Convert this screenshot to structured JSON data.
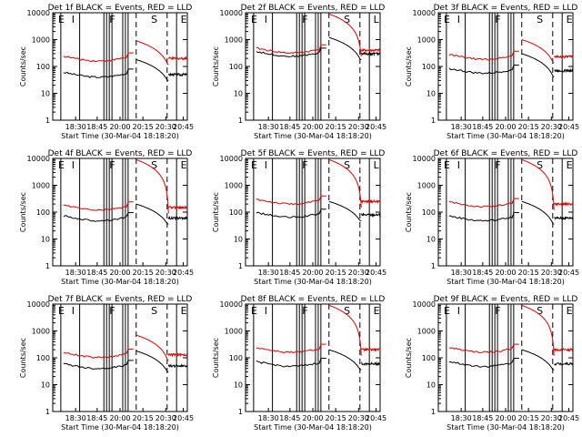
{
  "chart_data": [
    {
      "type": "line",
      "title": "Det 1f BLACK = Events, RED = LLD",
      "xlabel": "Start Time (30-Mar-04 18:18:20)",
      "ylabel": "Counts/sec",
      "ylim": [
        1,
        10000
      ],
      "yscale": "log",
      "xlim": [
        18.3,
        21.0
      ],
      "xticklabels": [
        "18:30",
        "18:45",
        "20:00",
        "20:15",
        "20:30",
        "20:45"
      ],
      "yticklabels": [
        "1",
        "10",
        "100",
        "1000",
        "10000"
      ],
      "letters": [
        "E",
        "I",
        "F",
        "S",
        "E"
      ],
      "series": [
        {
          "color": "#000000",
          "level": 50,
          "peak": 180
        },
        {
          "color": "#dd0000",
          "level": 200,
          "peak": 900
        }
      ]
    },
    {
      "type": "line",
      "title": "Det 2f BLACK = Events, RED = LLD",
      "xlabel": "Start Time (30-Mar-04 18:18:20)",
      "ylabel": "Counts/sec",
      "ylim": [
        1,
        10000
      ],
      "yscale": "log",
      "xlim": [
        18.3,
        21.0
      ],
      "xticklabels": [
        "18:30",
        "18:45",
        "20:00",
        "20:15",
        "20:30",
        "20:45"
      ],
      "yticklabels": [
        "1",
        "10",
        "100",
        "1000",
        "10000"
      ],
      "letters": [
        "E",
        "I",
        "F",
        "S",
        "L"
      ],
      "series": [
        {
          "color": "#000000",
          "level": 300,
          "peak": 1200
        },
        {
          "color": "#dd0000",
          "level": 400,
          "peak": 9000
        }
      ]
    },
    {
      "type": "line",
      "title": "Det 3f BLACK = Events, RED = LLD",
      "xlabel": "Start Time (30-Mar-04 18:18:20)",
      "ylabel": "Counts/sec",
      "ylim": [
        1,
        10000
      ],
      "yscale": "log",
      "xlim": [
        18.3,
        21.0
      ],
      "xticklabels": [
        "18:30",
        "18:45",
        "20:00",
        "20:15",
        "20:30",
        "20:45"
      ],
      "yticklabels": [
        "1",
        "10",
        "100",
        "1000",
        "10000"
      ],
      "letters": [
        "E",
        "I",
        "F",
        "S",
        "E"
      ],
      "series": [
        {
          "color": "#000000",
          "level": 70,
          "peak": 300
        },
        {
          "color": "#dd0000",
          "level": 230,
          "peak": 1000
        }
      ]
    },
    {
      "type": "line",
      "title": "Det 4f BLACK = Events, RED = LLD",
      "xlabel": "Start Time (30-Mar-04 18:18:20)",
      "ylabel": "Counts/sec",
      "ylim": [
        1,
        10000
      ],
      "yscale": "log",
      "xlim": [
        18.3,
        21.0
      ],
      "xticklabels": [
        "18:30",
        "18:45",
        "20:00",
        "20:15",
        "20:30",
        "20:45"
      ],
      "yticklabels": [
        "1",
        "10",
        "100",
        "1000",
        "10000"
      ],
      "letters": [
        "E",
        "I",
        "F",
        "S",
        "E"
      ],
      "series": [
        {
          "color": "#000000",
          "level": 60,
          "peak": 200
        },
        {
          "color": "#dd0000",
          "level": 150,
          "peak": 9000
        }
      ]
    },
    {
      "type": "line",
      "title": "Det 5f BLACK = Events, RED = LLD",
      "xlabel": "Start Time (30-Mar-04 18:18:20)",
      "ylabel": "Counts/sec",
      "ylim": [
        1,
        10000
      ],
      "yscale": "log",
      "xlim": [
        18.3,
        21.0
      ],
      "xticklabels": [
        "18:30",
        "18:45",
        "20:00",
        "20:15",
        "20:30",
        "20:45"
      ],
      "yticklabels": [
        "1",
        "10",
        "100",
        "1000",
        "10000"
      ],
      "letters": [
        "E",
        "I",
        "F",
        "S",
        "L"
      ],
      "series": [
        {
          "color": "#000000",
          "level": 80,
          "peak": 250
        },
        {
          "color": "#dd0000",
          "level": 250,
          "peak": 9000
        }
      ]
    },
    {
      "type": "line",
      "title": "Det 6f BLACK = Events, RED = LLD",
      "xlabel": "Start Time (30-Mar-04 18:18:20)",
      "ylabel": "Counts/sec",
      "ylim": [
        1,
        10000
      ],
      "yscale": "log",
      "xlim": [
        18.3,
        21.0
      ],
      "xticklabels": [
        "18:30",
        "18:45",
        "20:00",
        "20:15",
        "20:30",
        "20:45"
      ],
      "yticklabels": [
        "1",
        "10",
        "100",
        "1000",
        "10000"
      ],
      "letters": [
        "E",
        "I",
        "F",
        "S",
        "E"
      ],
      "series": [
        {
          "color": "#000000",
          "level": 60,
          "peak": 250
        },
        {
          "color": "#dd0000",
          "level": 200,
          "peak": 9000
        }
      ]
    },
    {
      "type": "line",
      "title": "Det 7f BLACK = Events, RED = LLD",
      "xlabel": "Start Time (30-Mar-04 18:18:20)",
      "ylabel": "Counts/sec",
      "ylim": [
        1,
        10000
      ],
      "yscale": "log",
      "xlim": [
        18.3,
        21.0
      ],
      "xticklabels": [
        "18:30",
        "18:45",
        "20:00",
        "20:15",
        "20:30",
        "20:45"
      ],
      "yticklabels": [
        "1",
        "10",
        "100",
        "1000",
        "10000"
      ],
      "letters": [
        "E",
        "I",
        "F",
        "S",
        "E"
      ],
      "series": [
        {
          "color": "#000000",
          "level": 50,
          "peak": 180
        },
        {
          "color": "#dd0000",
          "level": 130,
          "peak": 700
        }
      ]
    },
    {
      "type": "line",
      "title": "Det 8f BLACK = Events, RED = LLD",
      "xlabel": "Start Time (30-Mar-04 18:18:20)",
      "ylabel": "Counts/sec",
      "ylim": [
        1,
        10000
      ],
      "yscale": "log",
      "xlim": [
        18.3,
        21.0
      ],
      "xticklabels": [
        "18:30",
        "18:45",
        "20:00",
        "20:15",
        "20:30",
        "20:45"
      ],
      "yticklabels": [
        "1",
        "10",
        "100",
        "1000",
        "10000"
      ],
      "letters": [
        "E",
        "I",
        "F",
        "S",
        "E"
      ],
      "series": [
        {
          "color": "#000000",
          "level": 60,
          "peak": 200
        },
        {
          "color": "#dd0000",
          "level": 200,
          "peak": 9000
        }
      ]
    },
    {
      "type": "line",
      "title": "Det 9f BLACK = Events, RED = LLD",
      "xlabel": "Start Time (30-Mar-04 18:18:20)",
      "ylabel": "Counts/sec",
      "ylim": [
        1,
        10000
      ],
      "yscale": "log",
      "xlim": [
        18.3,
        21.0
      ],
      "xticklabels": [
        "18:30",
        "18:45",
        "20:00",
        "20:15",
        "20:30",
        "20:45"
      ],
      "yticklabels": [
        "1",
        "10",
        "100",
        "1000",
        "10000"
      ],
      "letters": [
        "E",
        "I",
        "F",
        "S",
        "E"
      ],
      "series": [
        {
          "color": "#000000",
          "level": 60,
          "peak": 200
        },
        {
          "color": "#dd0000",
          "level": 200,
          "peak": 9000
        }
      ]
    }
  ]
}
